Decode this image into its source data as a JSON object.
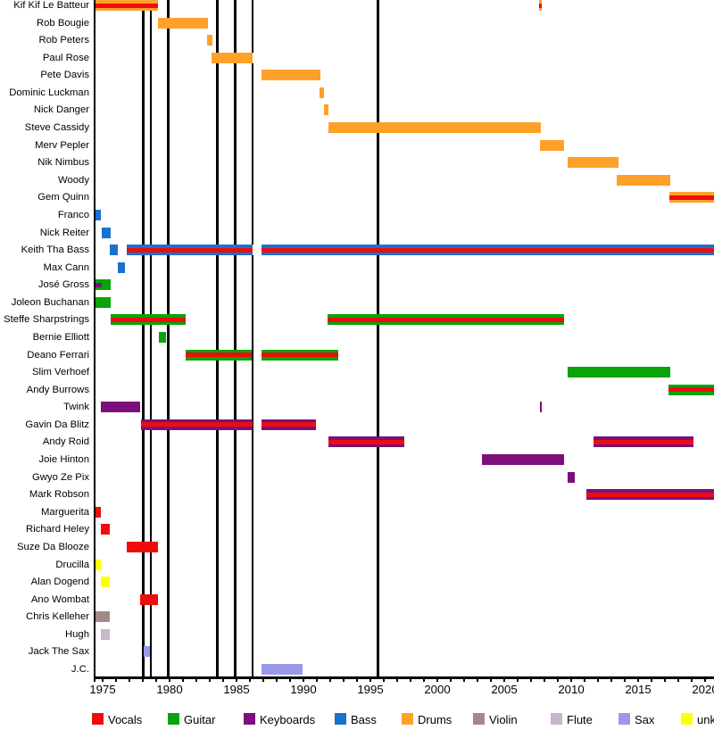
{
  "chart_data": {
    "type": "timeline",
    "x_axis": {
      "start_year": 1974.4,
      "end_year": 2020.67,
      "labeled_ticks": [
        1975,
        1980,
        1985,
        1990,
        1995,
        2000,
        2005,
        2010,
        2015,
        2020
      ],
      "minor_tick_interval_years": 1
    },
    "release_lines_years": [
      1978.03,
      1978.6,
      1979.9,
      1983.57,
      1984.9,
      1986.19,
      1995.55
    ],
    "colors": {
      "vocals": "#ee0d0d",
      "guitar": "#0aa30a",
      "keyboards": "#7c0f7c",
      "bass": "#1a72cf",
      "drums": "#ffa129",
      "violin": "#a08b88",
      "flute": "#c7b6cc",
      "sax": "#9899e8",
      "unknown": "#ffff00"
    },
    "members": [
      {
        "name": "Kif Kif Le Batteur",
        "segments": [
          {
            "from": 1974.45,
            "to": 1979.11,
            "instrument": "drums",
            "stripe": "vocals"
          },
          {
            "from": 2007.6,
            "to": 2007.8,
            "instrument": "drums",
            "stripe": "vocals"
          }
        ]
      },
      {
        "name": "Rob Bougie",
        "segments": [
          {
            "from": 1979.11,
            "to": 1982.89,
            "instrument": "drums"
          }
        ]
      },
      {
        "name": "Rob Peters",
        "segments": [
          {
            "from": 1982.78,
            "to": 1983.18,
            "instrument": "drums"
          }
        ]
      },
      {
        "name": "Paul Rose",
        "segments": [
          {
            "from": 1983.11,
            "to": 1986.22,
            "instrument": "drums"
          }
        ]
      },
      {
        "name": "Pete Davis",
        "segments": [
          {
            "from": 1986.85,
            "to": 1991.29,
            "instrument": "drums"
          }
        ]
      },
      {
        "name": "Dominic Luckman",
        "segments": [
          {
            "from": 1991.22,
            "to": 1991.55,
            "instrument": "drums"
          }
        ]
      },
      {
        "name": "Nick Danger",
        "segments": [
          {
            "from": 1991.51,
            "to": 1991.85,
            "instrument": "drums"
          }
        ]
      },
      {
        "name": "Steve Cassidy",
        "segments": [
          {
            "from": 1991.85,
            "to": 2007.71,
            "instrument": "drums"
          }
        ]
      },
      {
        "name": "Merv Pepler",
        "segments": [
          {
            "from": 2007.67,
            "to": 2009.49,
            "instrument": "drums"
          }
        ]
      },
      {
        "name": "Nik Nimbus",
        "segments": [
          {
            "from": 2009.71,
            "to": 2013.55,
            "instrument": "drums"
          }
        ]
      },
      {
        "name": "Woody",
        "segments": [
          {
            "from": 2013.4,
            "to": 2017.38,
            "instrument": "drums"
          }
        ]
      },
      {
        "name": "Gem Quinn",
        "segments": [
          {
            "from": 2017.33,
            "to": 2020.67,
            "instrument": "drums",
            "stripe": "vocals"
          }
        ]
      },
      {
        "name": "Franco",
        "segments": [
          {
            "from": 1974.45,
            "to": 1974.89,
            "instrument": "bass"
          }
        ]
      },
      {
        "name": "Nick Reiter",
        "segments": [
          {
            "from": 1974.95,
            "to": 1975.62,
            "instrument": "bass"
          }
        ]
      },
      {
        "name": "Keith Tha Bass",
        "segments": [
          {
            "from": 1975.55,
            "to": 1976.11,
            "instrument": "bass"
          },
          {
            "from": 1976.8,
            "to": 1986.22,
            "instrument": "bass",
            "stripe": "vocals"
          },
          {
            "from": 1986.89,
            "to": 2020.67,
            "instrument": "bass",
            "stripe": "vocals"
          }
        ]
      },
      {
        "name": "Max Cann",
        "segments": [
          {
            "from": 1976.11,
            "to": 1976.67,
            "instrument": "bass"
          }
        ]
      },
      {
        "name": "José Gross",
        "segments": [
          {
            "from": 1974.45,
            "to": 1975.62,
            "instrument": "guitar",
            "substripe": {
              "color": "keyboards",
              "to": 1974.95
            }
          }
        ]
      },
      {
        "name": "Joleon Buchanan",
        "segments": [
          {
            "from": 1974.45,
            "to": 1975.62,
            "instrument": "guitar"
          }
        ]
      },
      {
        "name": "Steffe Sharpstrings",
        "segments": [
          {
            "from": 1975.6,
            "to": 1981.22,
            "instrument": "guitar",
            "stripe": "vocals"
          },
          {
            "from": 1991.82,
            "to": 2009.45,
            "instrument": "guitar",
            "stripe": "vocals"
          }
        ]
      },
      {
        "name": "Bernie Elliott",
        "segments": [
          {
            "from": 1979.18,
            "to": 1979.73,
            "instrument": "guitar"
          }
        ]
      },
      {
        "name": "Deano Ferrari",
        "segments": [
          {
            "from": 1981.22,
            "to": 1986.11,
            "instrument": "guitar",
            "stripe": "vocals"
          },
          {
            "from": 1986.89,
            "to": 1992.58,
            "instrument": "guitar",
            "stripe": "vocals"
          }
        ]
      },
      {
        "name": "Slim Verhoef",
        "segments": [
          {
            "from": 2009.71,
            "to": 2017.38,
            "instrument": "guitar"
          }
        ]
      },
      {
        "name": "Andy Burrows",
        "segments": [
          {
            "from": 2017.27,
            "to": 2020.67,
            "instrument": "guitar",
            "stripe": "vocals"
          }
        ]
      },
      {
        "name": "Twink",
        "segments": [
          {
            "from": 1974.85,
            "to": 1977.82,
            "instrument": "keyboards"
          },
          {
            "from": 2007.67,
            "to": 2007.83,
            "instrument": "keyboards"
          }
        ]
      },
      {
        "name": "Gavin Da Blitz",
        "segments": [
          {
            "from": 1977.87,
            "to": 1986.18,
            "instrument": "keyboards",
            "stripe": "vocals"
          },
          {
            "from": 1986.89,
            "to": 1990.95,
            "instrument": "keyboards",
            "stripe": "vocals"
          }
        ]
      },
      {
        "name": "Andy Roid",
        "segments": [
          {
            "from": 1991.85,
            "to": 1997.55,
            "instrument": "keyboards",
            "stripe": "vocals"
          },
          {
            "from": 2011.67,
            "to": 2019.11,
            "instrument": "keyboards",
            "stripe": "vocals"
          }
        ]
      },
      {
        "name": "Joie Hinton",
        "segments": [
          {
            "from": 2003.33,
            "to": 2009.45,
            "instrument": "keyboards"
          }
        ]
      },
      {
        "name": "Gwyo Ze Pix",
        "segments": [
          {
            "from": 2009.73,
            "to": 2010.29,
            "instrument": "keyboards"
          }
        ]
      },
      {
        "name": "Mark Robson",
        "segments": [
          {
            "from": 2011.11,
            "to": 2020.67,
            "instrument": "keyboards",
            "stripe": "vocals"
          }
        ]
      },
      {
        "name": "Marguerita",
        "segments": [
          {
            "from": 1974.45,
            "to": 1974.89,
            "instrument": "vocals"
          }
        ]
      },
      {
        "name": "Richard Heley",
        "segments": [
          {
            "from": 1974.89,
            "to": 1975.51,
            "instrument": "vocals"
          }
        ]
      },
      {
        "name": "Suze Da Blooze",
        "segments": [
          {
            "from": 1976.78,
            "to": 1979.15,
            "instrument": "vocals"
          }
        ]
      },
      {
        "name": "Drucilla",
        "segments": [
          {
            "from": 1974.45,
            "to": 1974.85,
            "instrument": "unknown"
          }
        ]
      },
      {
        "name": "Alan Dogend",
        "segments": [
          {
            "from": 1974.85,
            "to": 1975.55,
            "instrument": "unknown"
          }
        ]
      },
      {
        "name": "Ano Wombat",
        "segments": [
          {
            "from": 1977.82,
            "to": 1979.15,
            "instrument": "vocals"
          }
        ]
      },
      {
        "name": "Chris Kelleher",
        "segments": [
          {
            "from": 1974.45,
            "to": 1975.55,
            "instrument": "violin"
          }
        ]
      },
      {
        "name": "Hugh",
        "segments": [
          {
            "from": 1974.85,
            "to": 1975.55,
            "instrument": "flute"
          }
        ]
      },
      {
        "name": "Jack The Sax",
        "segments": [
          {
            "from": 1978.09,
            "to": 1978.55,
            "instrument": "sax"
          }
        ]
      },
      {
        "name": "J.C.",
        "segments": [
          {
            "from": 1986.85,
            "to": 1989.93,
            "instrument": "sax"
          }
        ]
      }
    ],
    "legend": [
      {
        "label": "Vocals",
        "key": "vocals"
      },
      {
        "label": "Guitar",
        "key": "guitar"
      },
      {
        "label": "Keyboards",
        "key": "keyboards"
      },
      {
        "label": "Bass",
        "key": "bass"
      },
      {
        "label": "Drums",
        "key": "drums"
      },
      {
        "label": "Violin",
        "key": "violin"
      },
      {
        "label": "Flute",
        "key": "flute"
      },
      {
        "label": "Sax",
        "key": "sax"
      },
      {
        "label": "unknown",
        "key": "unknown"
      }
    ]
  }
}
